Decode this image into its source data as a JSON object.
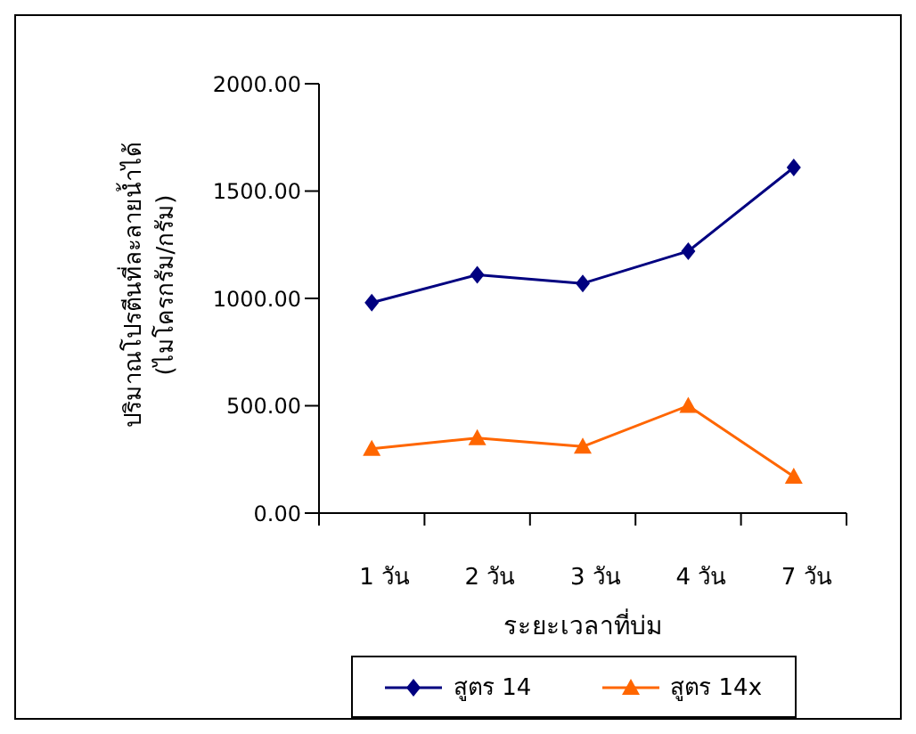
{
  "chart_data": {
    "type": "line",
    "xlabel": "ระยะเวลาที่บ่ม",
    "ylabel": "ปริมาณโปรตีนที่ละลายน้ำได้\n(ไมโครกรัม/กรัม)",
    "categories": [
      "1 วัน",
      "2 วัน",
      "3 วัน",
      "4 วัน",
      "7 วัน"
    ],
    "series": [
      {
        "name": "สูตร 14",
        "color": "#000080",
        "marker": "diamond",
        "values": [
          980,
          1110,
          1070,
          1220,
          1610
        ]
      },
      {
        "name": "สูตร 14x",
        "color": "#ff6600",
        "marker": "triangle",
        "values": [
          300,
          350,
          310,
          500,
          170
        ]
      }
    ],
    "ylim": [
      0,
      2000
    ],
    "yticks": [
      {
        "value": 0,
        "label": "0.00"
      },
      {
        "value": 500,
        "label": "500.00"
      },
      {
        "value": 1000,
        "label": "1000.00"
      },
      {
        "value": 1500,
        "label": "1500.00"
      },
      {
        "value": 2000,
        "label": "2000.00"
      }
    ],
    "grid": false,
    "legend": "bottom"
  }
}
